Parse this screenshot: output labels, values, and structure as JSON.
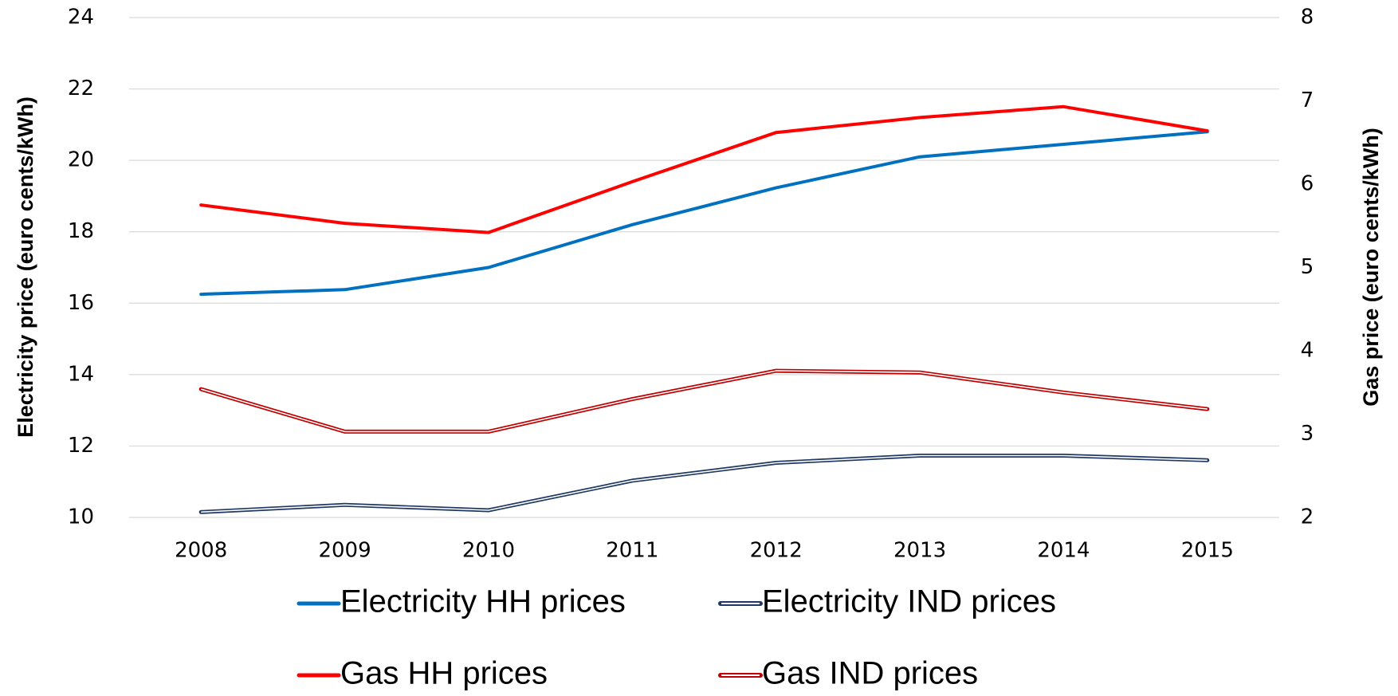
{
  "chart_data": {
    "type": "line",
    "categories": [
      "2008",
      "2009",
      "2010",
      "2011",
      "2012",
      "2013",
      "2014",
      "2015"
    ],
    "ylabel": "Electricity price (euro cents/kWh)",
    "y2label": "Gas price (euro cents/kWh)",
    "ylim": [
      10,
      24
    ],
    "yticks": [
      10,
      12,
      14,
      16,
      18,
      20,
      22,
      24
    ],
    "y2lim": [
      2,
      8
    ],
    "y2ticks": [
      2,
      3,
      4,
      5,
      6,
      7,
      8
    ],
    "grid": true,
    "legend": "bottom",
    "series": [
      {
        "name": "Electricity HH prices",
        "color": "#0070c0",
        "line_style": "solid",
        "axis": "y",
        "values": [
          16.25,
          16.38,
          17.0,
          18.2,
          19.23,
          20.1,
          20.45,
          20.8
        ]
      },
      {
        "name": "Electricity IND prices",
        "color": "#1f3864",
        "line_style": "double",
        "axis": "y",
        "values": [
          10.15,
          10.35,
          10.2,
          11.03,
          11.53,
          11.73,
          11.73,
          11.6
        ]
      },
      {
        "name": "Gas HH prices",
        "color": "#ff0000",
        "line_style": "solid",
        "axis": "y2",
        "values": [
          5.75,
          5.53,
          5.42,
          6.03,
          6.62,
          6.8,
          6.93,
          6.64
        ]
      },
      {
        "name": "Gas IND prices",
        "color": "#c00000",
        "line_style": "double",
        "axis": "y2",
        "values": [
          3.54,
          3.03,
          3.03,
          3.42,
          3.76,
          3.74,
          3.5,
          3.3
        ]
      }
    ]
  }
}
